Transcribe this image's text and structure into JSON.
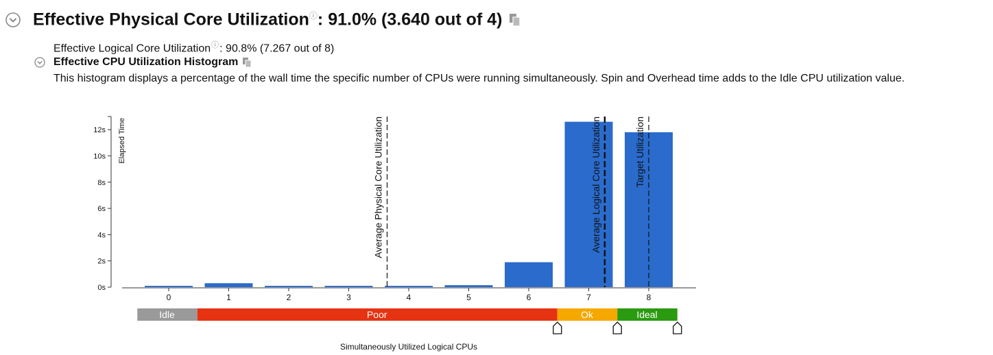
{
  "header": {
    "title": "Effective Physical Core Utilization",
    "help_glyph": "?",
    "value": ": 91.0% (3.640 out of 4)"
  },
  "logical": {
    "label": "Effective Logical Core Utilization",
    "help_glyph": "?",
    "value": ": 90.8% (7.267 out of 8)"
  },
  "histogram": {
    "title": "Effective CPU Utilization Histogram",
    "description": "This histogram displays a percentage of the wall time the specific number of CPUs were running simultaneously. Spin and Overhead time adds to the Idle CPU utilization value."
  },
  "chart_data": {
    "type": "bar",
    "categories": [
      "0",
      "1",
      "2",
      "3",
      "4",
      "5",
      "6",
      "7",
      "8"
    ],
    "values": [
      0.1,
      0.3,
      0.1,
      0.1,
      0.1,
      0.15,
      1.9,
      12.6,
      11.8
    ],
    "bar_color": "#2a6bcc",
    "ylabel": "Elapsed Time",
    "xlabel": "Simultaneously Utilized Logical CPUs",
    "ylim": [
      0,
      13
    ],
    "yticks": [
      0,
      2,
      4,
      6,
      8,
      10,
      12
    ],
    "ytick_labels": [
      "0s",
      "2s",
      "4s",
      "6s",
      "8s",
      "10s",
      "12s"
    ],
    "reference_lines": [
      {
        "label": "Average Physical Core Utilization",
        "x": 3.64,
        "style": "dashed-thin"
      },
      {
        "label": "Average Logical Core Utilization",
        "x": 7.267,
        "style": "dashed-thick"
      },
      {
        "label": "Target Utilization",
        "x": 8,
        "style": "dashed-thin"
      }
    ],
    "utilization_bands": [
      {
        "label": "Idle",
        "from": -0.5,
        "to": 0.5,
        "color": "#9a9a9a"
      },
      {
        "label": "Poor",
        "from": 0.5,
        "to": 6.5,
        "color": "#e63312"
      },
      {
        "label": "Ok",
        "from": 6.5,
        "to": 7.5,
        "color": "#f5a800"
      },
      {
        "label": "Ideal",
        "from": 7.5,
        "to": 8.5,
        "color": "#2a9a10"
      }
    ],
    "band_handles": [
      6.5,
      7.5,
      8.5
    ]
  }
}
